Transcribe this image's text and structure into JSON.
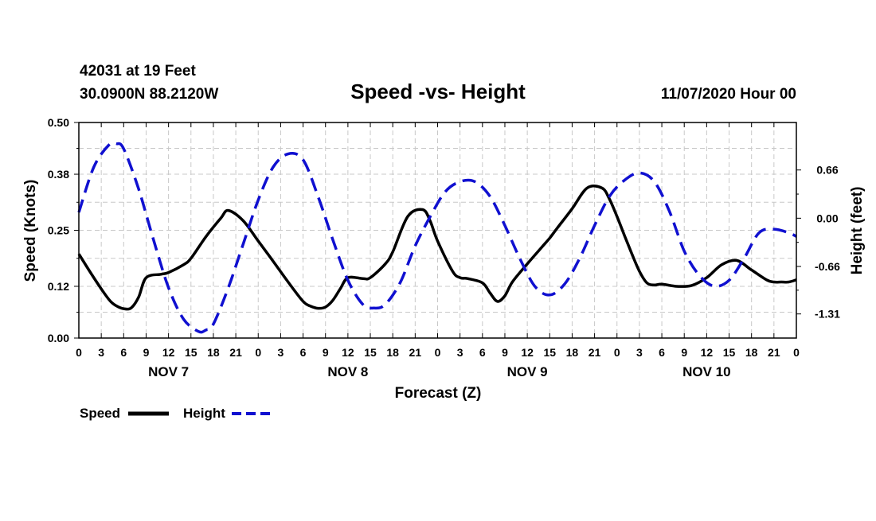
{
  "header": {
    "station": "42031 at 19 Feet",
    "location": "30.0900N 88.2120W",
    "title": "Speed -vs- Height",
    "datetime": "11/07/2020 Hour 00"
  },
  "legend": {
    "speed_label": "Speed",
    "height_label": "Height",
    "speed_color": "#000000",
    "height_color": "#1010d0"
  },
  "chart_data": {
    "type": "line",
    "title": "Speed -vs- Height",
    "xlabel": "Forecast (Z)",
    "ylabel": "Speed (Knots)",
    "y2label": "Height (feet)",
    "xlim": [
      0,
      96
    ],
    "ylim": [
      0.0,
      0.5
    ],
    "y2lim": [
      -1.64,
      1.31
    ],
    "grid": true,
    "legend_position": "bottom-left",
    "x_tick_values": [
      0,
      3,
      6,
      9,
      12,
      15,
      18,
      21,
      24,
      27,
      30,
      33,
      36,
      39,
      42,
      45,
      48,
      51,
      54,
      57,
      60,
      63,
      66,
      69,
      72,
      75,
      78,
      81,
      84,
      87,
      90,
      93,
      96
    ],
    "x_tick_labels": [
      "0",
      "3",
      "6",
      "9",
      "12",
      "15",
      "18",
      "21",
      "0",
      "3",
      "6",
      "9",
      "12",
      "15",
      "18",
      "21",
      "0",
      "3",
      "6",
      "9",
      "12",
      "15",
      "18",
      "21",
      "0",
      "3",
      "6",
      "9",
      "12",
      "15",
      "18",
      "21",
      "0"
    ],
    "day_labels": [
      {
        "text": "NOV 7",
        "x": 12
      },
      {
        "text": "NOV 8",
        "x": 36
      },
      {
        "text": "NOV 9",
        "x": 60
      },
      {
        "text": "NOV 10",
        "x": 84
      }
    ],
    "y_tick_values": [
      0.0,
      0.12,
      0.25,
      0.38,
      0.5
    ],
    "y_tick_labels": [
      "0.00",
      "0.12",
      "0.25",
      "0.38",
      "0.50"
    ],
    "y2_tick_values": [
      0.66,
      0.0,
      -0.66,
      -1.31
    ],
    "y2_tick_labels": [
      "0.66",
      "0.00",
      "-0.66",
      "-1.31"
    ],
    "series": [
      {
        "name": "Speed",
        "axis": "left",
        "style": "solid",
        "color": "#000000",
        "x": [
          0,
          2,
          4,
          5,
          6,
          7,
          8,
          9,
          11,
          12,
          14,
          15,
          17,
          19,
          20,
          22,
          24,
          26,
          28,
          30,
          31,
          32,
          33,
          34,
          35,
          36,
          38,
          39,
          41,
          42,
          44,
          46,
          47,
          48,
          50,
          51,
          52,
          54,
          55,
          56,
          57,
          58,
          60,
          61,
          62,
          63,
          64,
          66,
          68,
          70,
          71,
          72,
          73,
          74,
          75,
          76,
          77,
          78,
          80,
          82,
          84,
          86,
          88,
          90,
          92,
          93,
          94,
          95,
          96
        ],
        "values": [
          0.195,
          0.14,
          0.09,
          0.075,
          0.068,
          0.07,
          0.095,
          0.14,
          0.148,
          0.152,
          0.17,
          0.185,
          0.235,
          0.278,
          0.296,
          0.272,
          0.225,
          0.178,
          0.13,
          0.085,
          0.074,
          0.069,
          0.072,
          0.088,
          0.115,
          0.14,
          0.138,
          0.14,
          0.172,
          0.2,
          0.282,
          0.298,
          0.272,
          0.225,
          0.155,
          0.14,
          0.138,
          0.128,
          0.105,
          0.085,
          0.098,
          0.13,
          0.172,
          0.192,
          0.212,
          0.232,
          0.255,
          0.3,
          0.348,
          0.348,
          0.322,
          0.282,
          0.238,
          0.195,
          0.155,
          0.128,
          0.123,
          0.125,
          0.12,
          0.122,
          0.14,
          0.17,
          0.18,
          0.158,
          0.135,
          0.13,
          0.13,
          0.13,
          0.135
        ]
      },
      {
        "name": "Height",
        "axis": "right",
        "style": "dashed",
        "color": "#1010d0",
        "x": [
          0,
          2,
          4,
          5,
          6,
          8,
          10,
          12,
          14,
          16,
          17,
          18,
          20,
          22,
          24,
          26,
          28,
          30,
          32,
          34,
          36,
          38,
          39.5,
          41,
          43,
          45,
          47,
          49,
          51,
          53,
          55,
          57,
          59,
          61,
          63,
          65,
          67,
          69,
          71,
          73,
          75,
          77,
          79,
          81,
          83,
          85,
          87,
          89,
          91,
          93,
          95,
          96
        ],
        "values": [
          0.08,
          0.7,
          1.0,
          1.02,
          0.95,
          0.4,
          -0.3,
          -0.95,
          -1.38,
          -1.55,
          -1.53,
          -1.45,
          -0.95,
          -0.35,
          0.25,
          0.7,
          0.88,
          0.8,
          0.3,
          -0.3,
          -0.85,
          -1.18,
          -1.23,
          -1.18,
          -0.88,
          -0.38,
          0.02,
          0.36,
          0.5,
          0.5,
          0.3,
          -0.1,
          -0.55,
          -0.93,
          -1.05,
          -0.9,
          -0.55,
          -0.1,
          0.3,
          0.52,
          0.62,
          0.5,
          0.1,
          -0.45,
          -0.78,
          -0.93,
          -0.85,
          -0.55,
          -0.2,
          -0.15,
          -0.2,
          -0.25
        ]
      }
    ]
  }
}
